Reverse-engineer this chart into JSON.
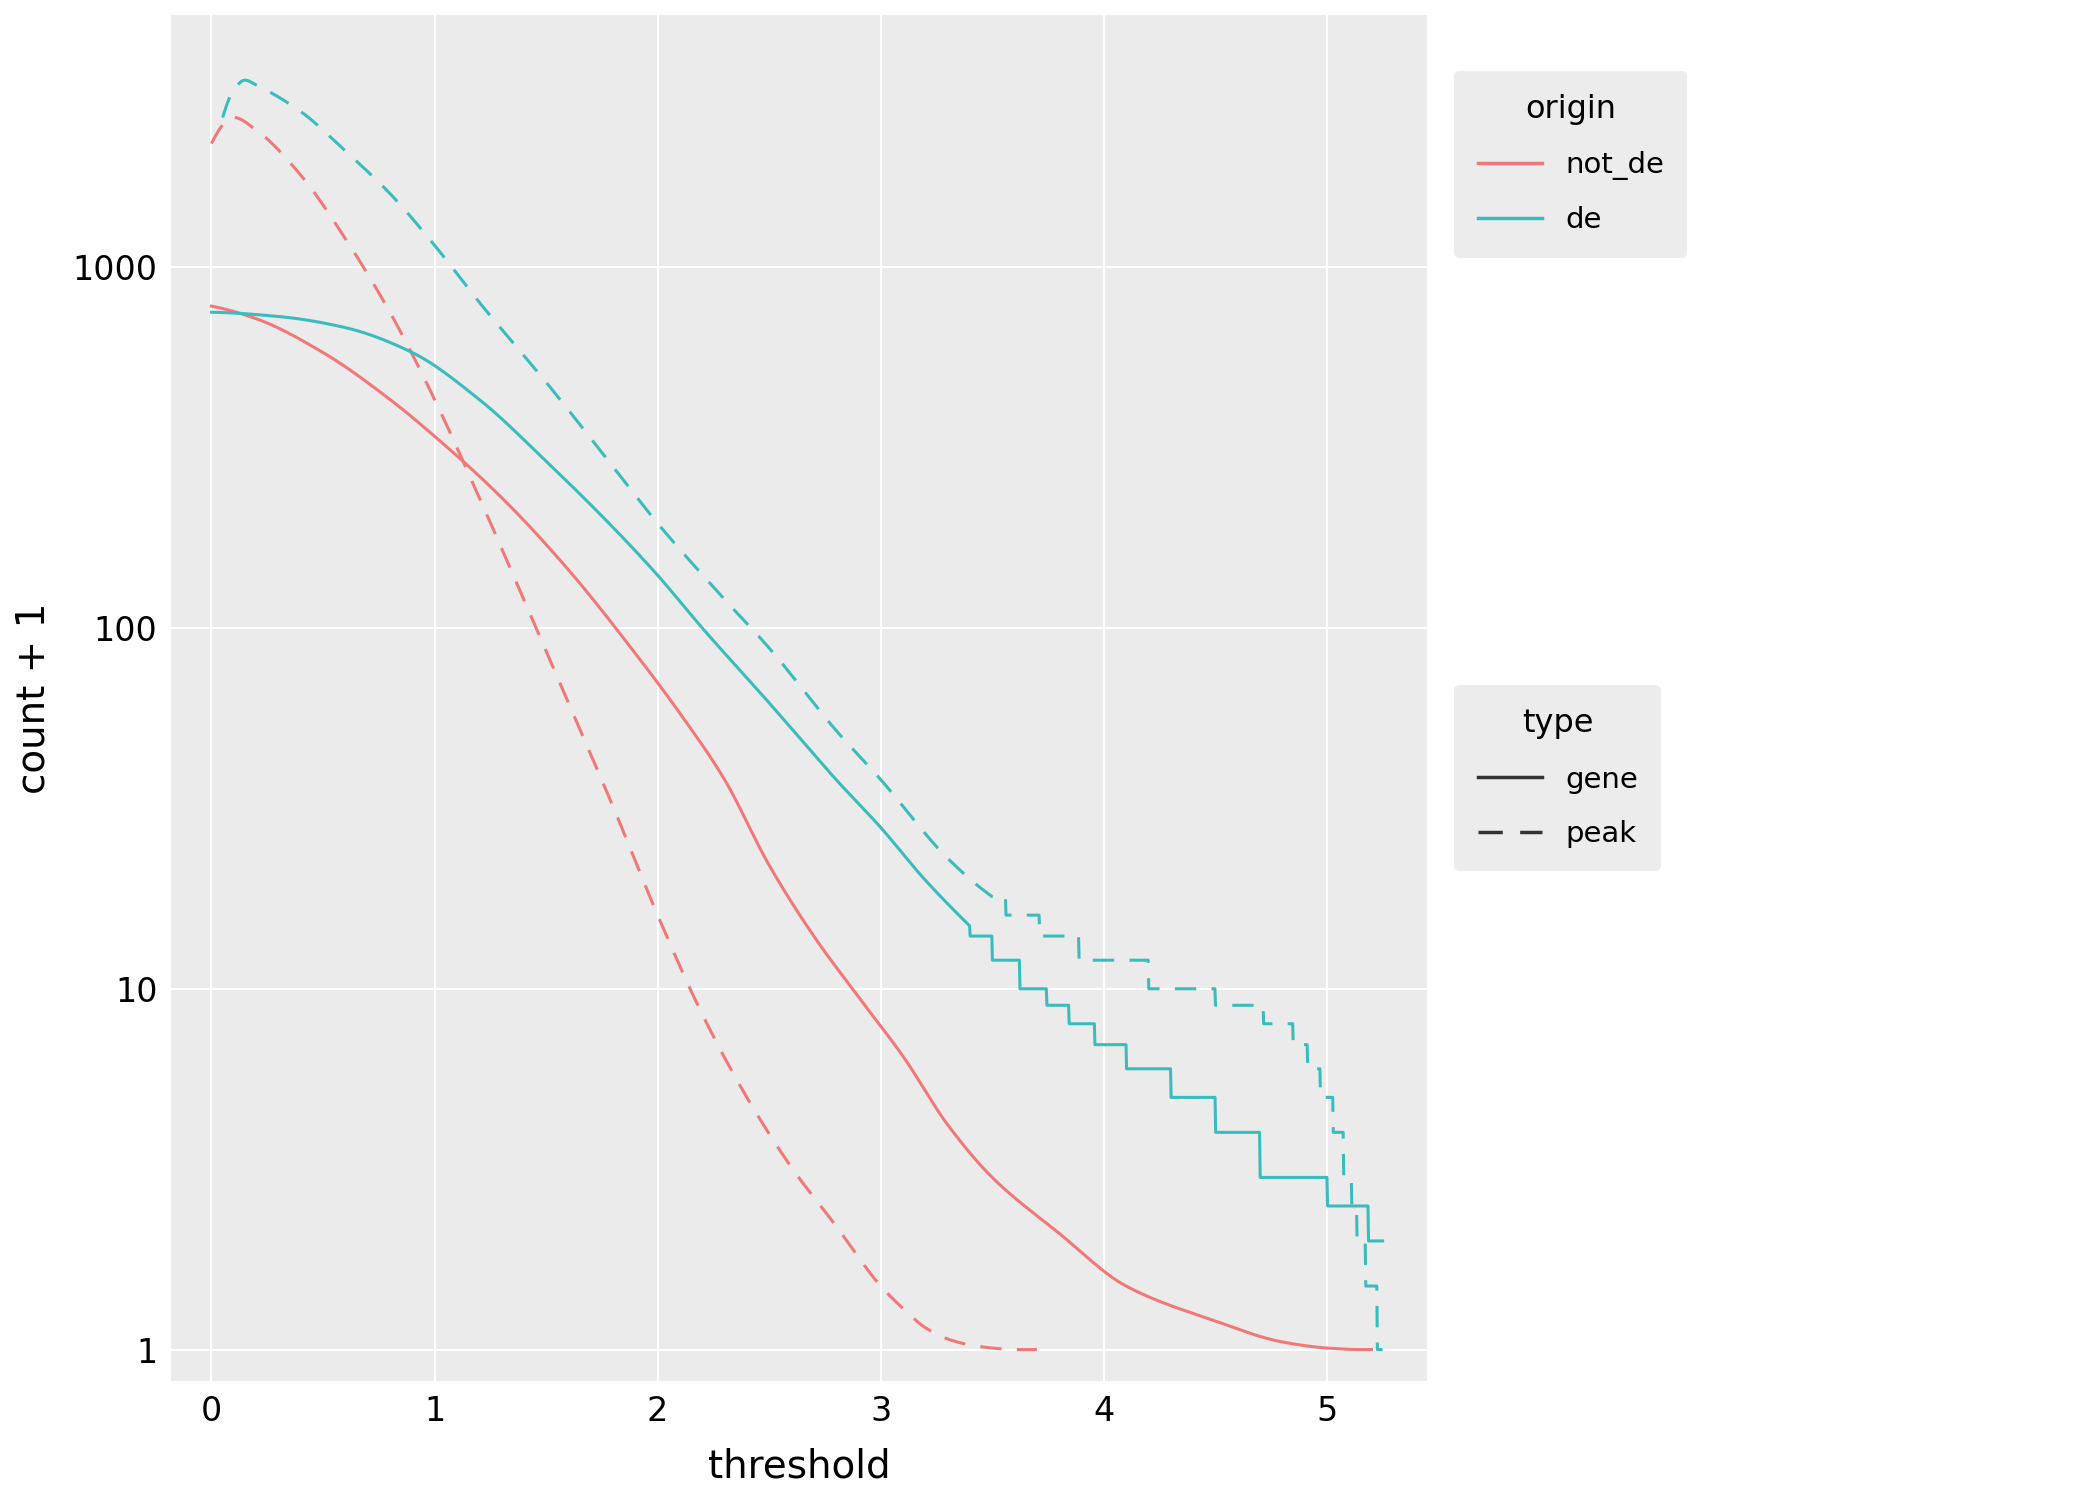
{
  "title": "",
  "xlabel": "threshold",
  "ylabel": "count + 1",
  "bg_color": "#ebebeb",
  "grid_color": "#ffffff",
  "colors": {
    "not_de": "#f07878",
    "de": "#3bbcbc"
  },
  "ylim_log": [
    0.82,
    5000
  ],
  "xlim": [
    -0.18,
    5.45
  ],
  "yticks": [
    1,
    10,
    100,
    1000
  ],
  "xticks": [
    0,
    1,
    2,
    3,
    4,
    5
  ],
  "not_de_gene_x": [
    0.0,
    0.2,
    0.5,
    0.8,
    1.0,
    1.3,
    1.6,
    1.9,
    2.1,
    2.3,
    2.5,
    2.7,
    2.9,
    3.1,
    3.3,
    3.5,
    3.8,
    4.1,
    4.5,
    4.8,
    5.0,
    5.15,
    5.2
  ],
  "not_de_gene_y": [
    780,
    720,
    580,
    430,
    340,
    230,
    145,
    85,
    58,
    38,
    22,
    14,
    9.5,
    6.5,
    4.2,
    3.0,
    2.1,
    1.5,
    1.2,
    1.05,
    1.01,
    1.0,
    1.0
  ],
  "not_de_peak_x": [
    0.0,
    0.1,
    0.2,
    0.4,
    0.6,
    0.8,
    1.0,
    1.2,
    1.4,
    1.6,
    1.8,
    2.0,
    2.2,
    2.4,
    2.6,
    2.8,
    3.0,
    3.1,
    3.2,
    3.3,
    3.4,
    3.5,
    3.6,
    3.7
  ],
  "not_de_peak_y": [
    2200,
    2600,
    2400,
    1800,
    1200,
    750,
    430,
    230,
    120,
    62,
    32,
    16,
    8.5,
    5.0,
    3.2,
    2.2,
    1.5,
    1.3,
    1.15,
    1.07,
    1.03,
    1.01,
    1.0,
    1.0
  ],
  "de_gene_x": [
    0.0,
    0.3,
    0.6,
    0.9,
    1.2,
    1.5,
    1.8,
    2.0,
    2.2,
    2.5,
    2.8,
    3.0,
    3.2,
    3.5,
    3.7,
    3.9,
    4.1,
    4.3,
    4.5,
    4.7,
    4.9,
    5.1,
    5.2,
    5.25
  ],
  "de_gene_y": [
    750,
    730,
    680,
    580,
    430,
    290,
    190,
    140,
    100,
    62,
    38,
    28,
    20,
    13,
    10,
    8,
    6.5,
    5.5,
    4.5,
    3.5,
    3.0,
    2.5,
    2.2,
    2.0
  ],
  "de_peak_x": [
    0.05,
    0.1,
    0.15,
    0.2,
    0.4,
    0.6,
    0.8,
    1.0,
    1.2,
    1.5,
    1.8,
    2.0,
    2.3,
    2.5,
    2.8,
    3.0,
    3.3,
    3.5,
    3.8,
    4.0,
    4.2,
    4.4,
    4.6,
    4.8,
    5.0,
    5.1,
    5.15,
    5.2,
    5.25
  ],
  "de_peak_y": [
    2600,
    3100,
    3300,
    3200,
    2700,
    2100,
    1600,
    1150,
    800,
    480,
    280,
    195,
    120,
    88,
    52,
    38,
    23,
    18,
    14,
    12,
    11,
    10,
    9,
    8,
    5,
    3,
    2,
    1.5,
    1.0
  ],
  "lw": 2.2
}
